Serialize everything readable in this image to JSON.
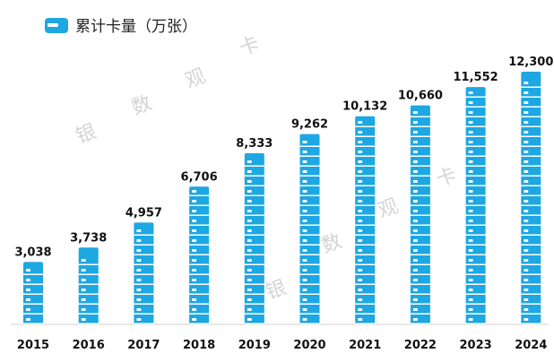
{
  "chart_data": {
    "type": "bar",
    "legend": {
      "label": "累计卡量（万张）",
      "position": "top-left",
      "icon": "card-icon"
    },
    "categories": [
      "2015",
      "2016",
      "2017",
      "2018",
      "2019",
      "2020",
      "2021",
      "2022",
      "2023",
      "2024"
    ],
    "values": [
      3038,
      3738,
      4957,
      6706,
      8333,
      9262,
      10132,
      10660,
      11552,
      12300
    ],
    "value_labels": [
      "3,038",
      "3,738",
      "4,957",
      "6,706",
      "8,333",
      "9,262",
      "10,132",
      "10,660",
      "11,552",
      "12,300"
    ],
    "ylim": [
      0,
      12300
    ],
    "grid": false,
    "colors": {
      "bar": "#1da7e3",
      "card_slot": "#ffffff",
      "axis": "#d0d0d0",
      "watermark": "#d4d4d4"
    }
  },
  "watermarks": [
    "银",
    "数",
    "观",
    "卡"
  ]
}
